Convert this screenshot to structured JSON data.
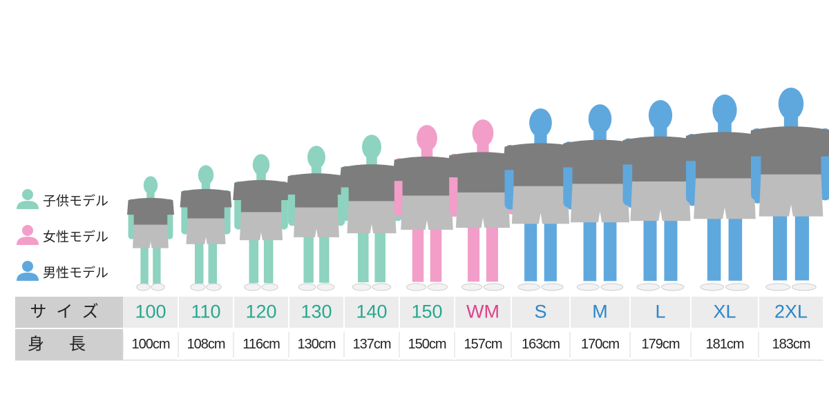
{
  "legend": [
    {
      "label": "子供モデル",
      "color": "#8dd3bf"
    },
    {
      "label": "女性モデル",
      "color": "#f29ec8"
    },
    {
      "label": "男性モデル",
      "color": "#5fa8de"
    }
  ],
  "table": {
    "row_labels": [
      "サイズ",
      "身長"
    ],
    "columns": [
      {
        "size": "100",
        "height": "100cm",
        "text_color": "#27a88f",
        "figure_color": "#8dd3bf"
      },
      {
        "size": "110",
        "height": "108cm",
        "text_color": "#27a88f",
        "figure_color": "#8dd3bf"
      },
      {
        "size": "120",
        "height": "116cm",
        "text_color": "#27a88f",
        "figure_color": "#8dd3bf"
      },
      {
        "size": "130",
        "height": "130cm",
        "text_color": "#27a88f",
        "figure_color": "#8dd3bf"
      },
      {
        "size": "140",
        "height": "137cm",
        "text_color": "#27a88f",
        "figure_color": "#8dd3bf"
      },
      {
        "size": "150",
        "height": "150cm",
        "text_color": "#27a88f",
        "figure_color": "#f29ec8"
      },
      {
        "size": "WM",
        "height": "157cm",
        "text_color": "#e0408a",
        "figure_color": "#f29ec8"
      },
      {
        "size": "S",
        "height": "163cm",
        "text_color": "#2a86c9",
        "figure_color": "#5fa8de"
      },
      {
        "size": "M",
        "height": "170cm",
        "text_color": "#2a86c9",
        "figure_color": "#5fa8de"
      },
      {
        "size": "L",
        "height": "179cm",
        "text_color": "#2a86c9",
        "figure_color": "#5fa8de"
      },
      {
        "size": "XL",
        "height": "181cm",
        "text_color": "#2a86c9",
        "figure_color": "#5fa8de"
      },
      {
        "size": "2XL",
        "height": "183cm",
        "text_color": "#2a86c9",
        "figure_color": "#5fa8de"
      }
    ]
  }
}
